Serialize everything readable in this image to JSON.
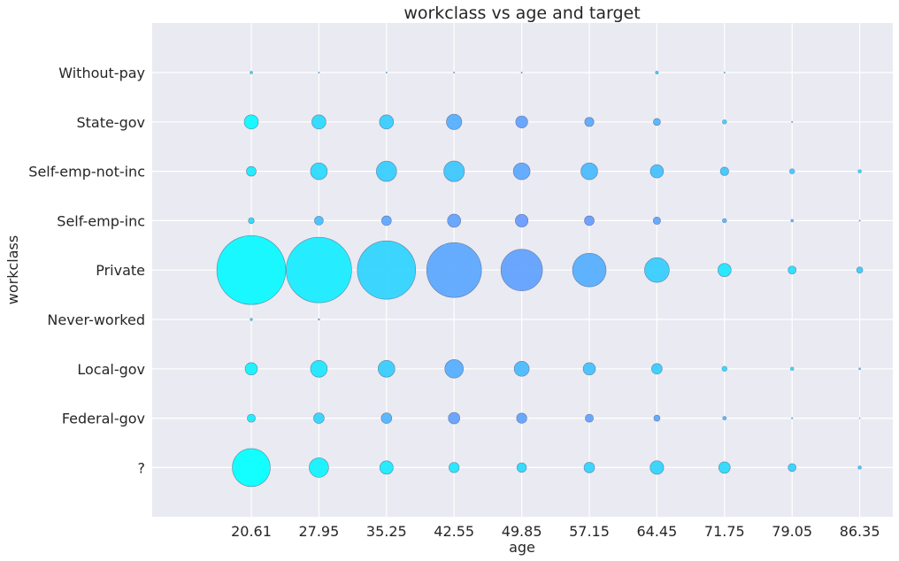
{
  "chart_data": {
    "type": "scatter",
    "title": "workclass vs age and target",
    "xlabel": "age",
    "ylabel": "workclass",
    "x_ticks": [
      "20.61",
      "27.95",
      "35.25",
      "42.55",
      "49.85",
      "57.15",
      "64.45",
      "71.75",
      "79.05",
      "86.35"
    ],
    "y_categories": [
      "?",
      "Federal-gov",
      "Local-gov",
      "Never-worked",
      "Private",
      "Self-emp-inc",
      "Self-emp-not-inc",
      "State-gov",
      "Without-pay"
    ],
    "grid": true,
    "background": "#eaeaf2",
    "size_rows": [
      [
        21.5,
        11,
        7.6,
        5.8,
        5.4,
        6,
        7.7,
        6.5,
        4.5,
        2
      ],
      [
        4.6,
        6,
        6,
        6.5,
        5.8,
        4.6,
        3.5,
        2.2,
        0.8,
        0.6
      ],
      [
        7,
        9.5,
        9.5,
        10.5,
        8.5,
        7,
        6,
        3,
        2,
        1.2
      ],
      [
        1.5,
        1,
        0,
        0,
        0,
        0,
        0,
        0,
        0,
        0
      ],
      [
        39,
        37,
        33,
        31,
        23.5,
        19,
        14,
        7.5,
        4.5,
        3.5
      ],
      [
        3.3,
        5,
        5.5,
        7.5,
        7.2,
        5.5,
        4.2,
        2.5,
        1.6,
        0.8
      ],
      [
        5.5,
        9.5,
        11.5,
        11.7,
        9.5,
        9.5,
        7.5,
        4.8,
        3,
        2
      ],
      [
        8,
        8,
        8,
        8.7,
        6.8,
        5.2,
        4,
        2.5,
        0.8,
        0
      ],
      [
        1.6,
        0.8,
        0.8,
        0.8,
        0.8,
        0,
        1.8,
        0.8,
        0,
        0
      ]
    ],
    "color_rows": [
      [
        0,
        0.1,
        0.15,
        0.2,
        0.3,
        0.35,
        0.35,
        0.3,
        0.35,
        0.5
      ],
      [
        0.15,
        0.35,
        0.6,
        0.75,
        0.75,
        0.75,
        0.7,
        0.6,
        0.6,
        0.5
      ],
      [
        0.1,
        0.2,
        0.4,
        0.65,
        0.55,
        0.5,
        0.4,
        0.35,
        0.3,
        0.5
      ],
      [
        0.4,
        0.5,
        0,
        0,
        0,
        0,
        0,
        0,
        0,
        0
      ],
      [
        0.05,
        0.15,
        0.35,
        0.7,
        0.75,
        0.65,
        0.4,
        0.2,
        0.25,
        0.4
      ],
      [
        0.3,
        0.5,
        0.7,
        0.75,
        0.8,
        0.8,
        0.7,
        0.6,
        0.6,
        0.6
      ],
      [
        0.15,
        0.3,
        0.4,
        0.45,
        0.7,
        0.55,
        0.5,
        0.45,
        0.45,
        0.35
      ],
      [
        0.05,
        0.3,
        0.4,
        0.65,
        0.75,
        0.7,
        0.6,
        0.4,
        0.4,
        0.5
      ],
      [
        0.4,
        0.5,
        0.6,
        0.6,
        0.6,
        0.6,
        0.5,
        0.5,
        0.5,
        0.5
      ]
    ],
    "colormap": [
      "#00ffff",
      "#8080ff"
    ]
  }
}
